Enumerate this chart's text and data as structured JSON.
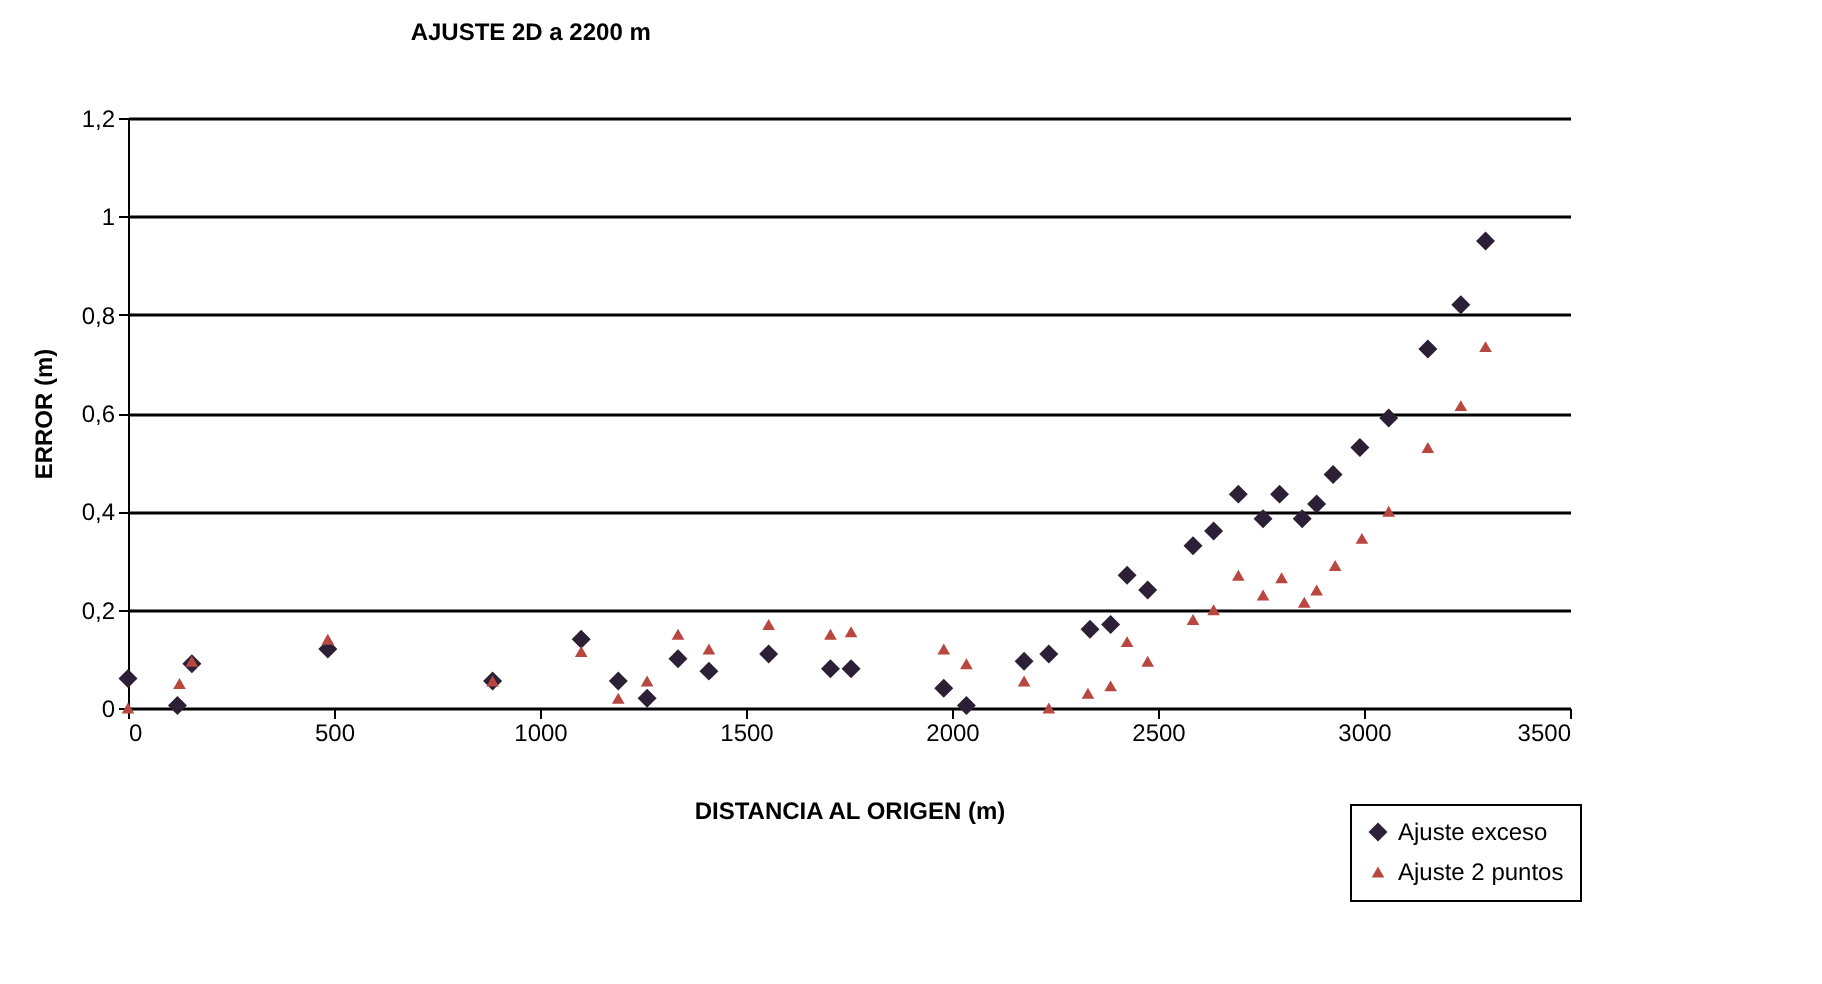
{
  "chart_data": {
    "type": "scatter",
    "title": "AJUSTE 2D a 2200 m",
    "xlabel": "DISTANCIA AL ORIGEN (m)",
    "ylabel": "ERROR (m)",
    "series": [
      {
        "name": "Ajuste exceso",
        "color": "#2b2035",
        "marker": "diamond",
        "x": [
          0,
          120,
          155,
          485,
          885,
          1100,
          1190,
          1260,
          1335,
          1410,
          1555,
          1705,
          1755,
          1980,
          2035,
          2175,
          2235,
          2335,
          2385,
          2425,
          2475,
          2585,
          2635,
          2695,
          2755,
          2795,
          2850,
          2885,
          2925,
          2990,
          3060,
          3155,
          3235,
          3295
        ],
        "values": [
          0.06,
          0.005,
          0.09,
          0.12,
          0.055,
          0.14,
          0.055,
          0.02,
          0.1,
          0.075,
          0.11,
          0.08,
          0.08,
          0.04,
          0.005,
          0.095,
          0.11,
          0.16,
          0.17,
          0.27,
          0.24,
          0.33,
          0.36,
          0.435,
          0.385,
          0.435,
          0.385,
          0.415,
          0.475,
          0.53,
          0.59,
          0.73,
          0.82,
          0.95
        ]
      },
      {
        "name": "Ajuste 2 puntos",
        "color": "#b8473f",
        "marker": "triangle",
        "x": [
          0,
          125,
          155,
          485,
          885,
          1100,
          1190,
          1260,
          1335,
          1410,
          1555,
          1705,
          1755,
          1980,
          2035,
          2175,
          2235,
          2330,
          2385,
          2425,
          2475,
          2585,
          2635,
          2695,
          2755,
          2800,
          2855,
          2885,
          2930,
          2995,
          3060,
          3155,
          3235,
          3295
        ],
        "values": [
          0,
          0.05,
          0.095,
          0.14,
          0.055,
          0.115,
          0.02,
          0.055,
          0.15,
          0.12,
          0.17,
          0.15,
          0.155,
          0.12,
          0.09,
          0.055,
          0,
          0.03,
          0.045,
          0.135,
          0.095,
          0.18,
          0.2,
          0.27,
          0.23,
          0.265,
          0.215,
          0.24,
          0.29,
          0.345,
          0.4,
          0.53,
          0.615,
          0.735
        ]
      }
    ],
    "xlim": [
      0,
      3500
    ],
    "xticks": [
      0,
      500,
      1000,
      1500,
      2000,
      2500,
      3000,
      3500
    ],
    "ylim": [
      0,
      1.2
    ],
    "yticks": [
      {
        "value": 0,
        "label": "0"
      },
      {
        "value": 0.2,
        "label": "0,2"
      },
      {
        "value": 0.4,
        "label": "0,4"
      },
      {
        "value": 0.6,
        "label": "0,6"
      },
      {
        "value": 0.8,
        "label": "0,8"
      },
      {
        "value": 1,
        "label": "1"
      },
      {
        "value": 1.2,
        "label": "1,2"
      }
    ],
    "grid": "y",
    "legend": "bottom right"
  }
}
